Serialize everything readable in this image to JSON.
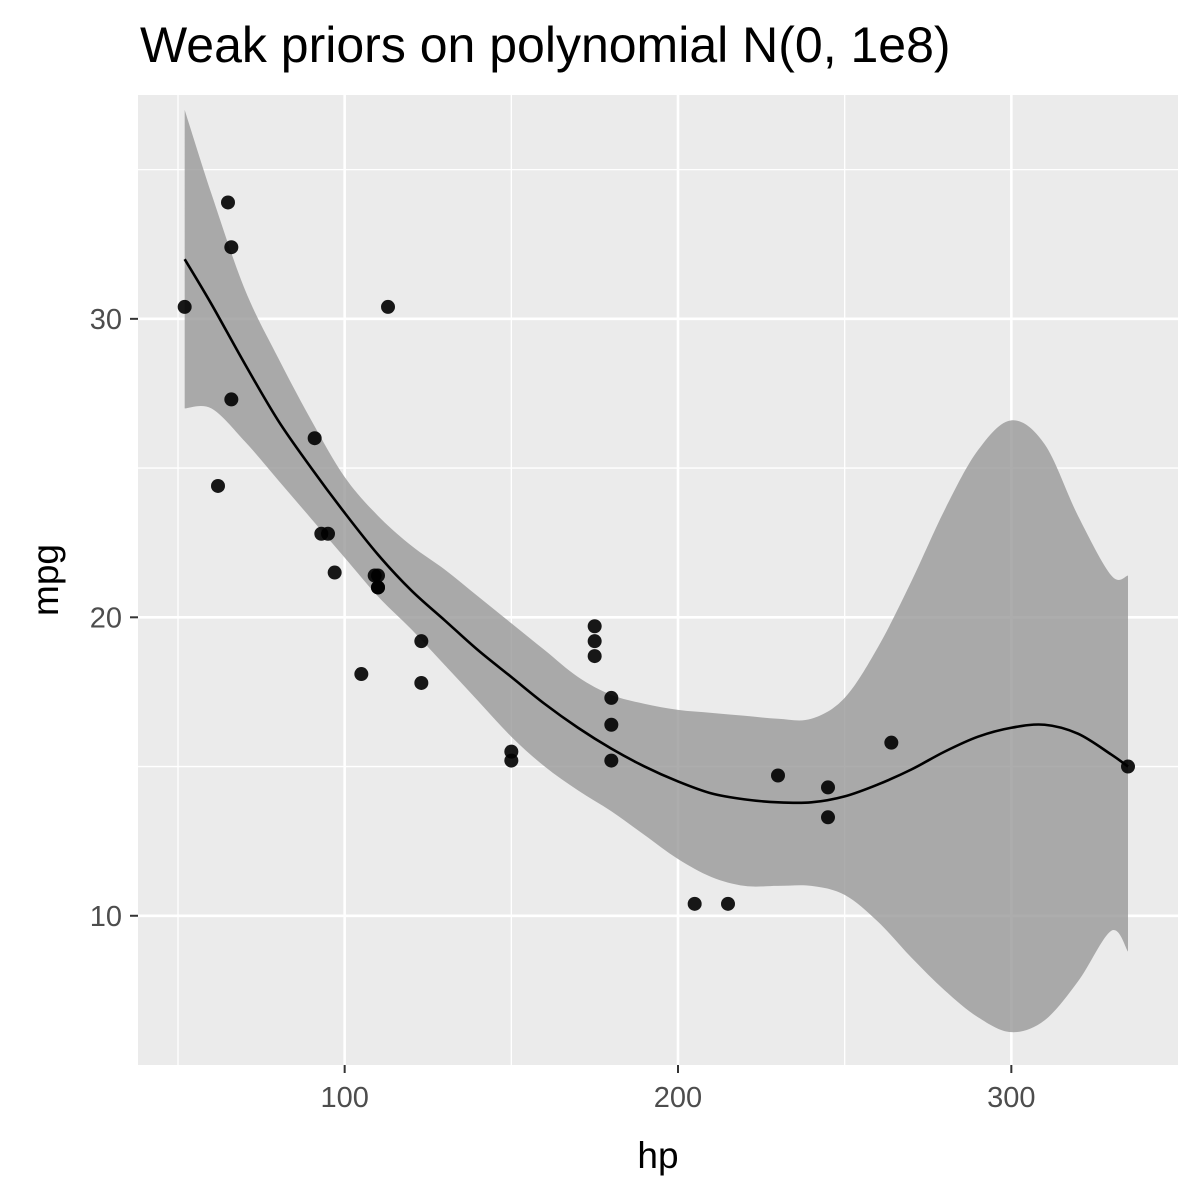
{
  "chart_data": {
    "type": "scatter",
    "title": "Weak priors on polynomial N(0, 1e8)",
    "xlabel": "hp",
    "ylabel": "mpg",
    "xlim": [
      38,
      350
    ],
    "ylim": [
      5,
      37.5
    ],
    "x_ticks": [
      100,
      200,
      300
    ],
    "x_tick_labels": [
      "100",
      "200",
      "300"
    ],
    "y_ticks": [
      10,
      20,
      30
    ],
    "y_tick_labels": [
      "10",
      "20",
      "30"
    ],
    "grid": true,
    "colors": {
      "panel_background": "#ebebeb",
      "grid": "#ffffff",
      "points": "#000000",
      "ribbon": "#999999",
      "line": "#000000"
    },
    "points": [
      {
        "x": 110,
        "y": 21.0
      },
      {
        "x": 110,
        "y": 21.0
      },
      {
        "x": 93,
        "y": 22.8
      },
      {
        "x": 110,
        "y": 21.4
      },
      {
        "x": 175,
        "y": 18.7
      },
      {
        "x": 105,
        "y": 18.1
      },
      {
        "x": 245,
        "y": 14.3
      },
      {
        "x": 62,
        "y": 24.4
      },
      {
        "x": 95,
        "y": 22.8
      },
      {
        "x": 123,
        "y": 19.2
      },
      {
        "x": 123,
        "y": 17.8
      },
      {
        "x": 180,
        "y": 16.4
      },
      {
        "x": 180,
        "y": 17.3
      },
      {
        "x": 180,
        "y": 15.2
      },
      {
        "x": 205,
        "y": 10.4
      },
      {
        "x": 215,
        "y": 10.4
      },
      {
        "x": 230,
        "y": 14.7
      },
      {
        "x": 66,
        "y": 32.4
      },
      {
        "x": 52,
        "y": 30.4
      },
      {
        "x": 65,
        "y": 33.9
      },
      {
        "x": 97,
        "y": 21.5
      },
      {
        "x": 150,
        "y": 15.5
      },
      {
        "x": 150,
        "y": 15.2
      },
      {
        "x": 245,
        "y": 13.3
      },
      {
        "x": 175,
        "y": 19.2
      },
      {
        "x": 66,
        "y": 27.3
      },
      {
        "x": 91,
        "y": 26.0
      },
      {
        "x": 113,
        "y": 30.4
      },
      {
        "x": 264,
        "y": 15.8
      },
      {
        "x": 175,
        "y": 19.7
      },
      {
        "x": 335,
        "y": 15.0
      },
      {
        "x": 109,
        "y": 21.4
      }
    ],
    "fit": {
      "x": [
        52,
        60,
        70,
        80,
        90,
        100,
        110,
        120,
        130,
        140,
        150,
        160,
        170,
        180,
        190,
        200,
        210,
        220,
        230,
        240,
        250,
        260,
        270,
        280,
        290,
        300,
        310,
        320,
        330,
        335
      ],
      "y": [
        32.0,
        30.5,
        28.5,
        26.6,
        25.0,
        23.5,
        22.1,
        20.9,
        19.9,
        18.9,
        18.0,
        17.1,
        16.3,
        15.6,
        15.0,
        14.5,
        14.1,
        13.9,
        13.8,
        13.8,
        14.0,
        14.4,
        14.9,
        15.5,
        16.0,
        16.3,
        16.4,
        16.1,
        15.4,
        15.0
      ],
      "lower": [
        27.0,
        27.0,
        25.9,
        24.6,
        23.3,
        22.0,
        20.7,
        19.6,
        18.4,
        17.2,
        16.0,
        15.0,
        14.2,
        13.5,
        12.7,
        11.9,
        11.3,
        11.0,
        11.0,
        11.0,
        10.7,
        9.8,
        8.6,
        7.5,
        6.6,
        6.1,
        6.5,
        7.8,
        9.5,
        8.8
      ],
      "upper": [
        37.0,
        34.2,
        31.0,
        28.7,
        26.6,
        24.7,
        23.4,
        22.4,
        21.6,
        20.7,
        19.8,
        18.9,
        18.0,
        17.4,
        17.1,
        16.9,
        16.8,
        16.7,
        16.6,
        16.6,
        17.3,
        19.0,
        21.2,
        23.6,
        25.6,
        26.6,
        25.8,
        23.4,
        21.4,
        21.4
      ]
    }
  }
}
